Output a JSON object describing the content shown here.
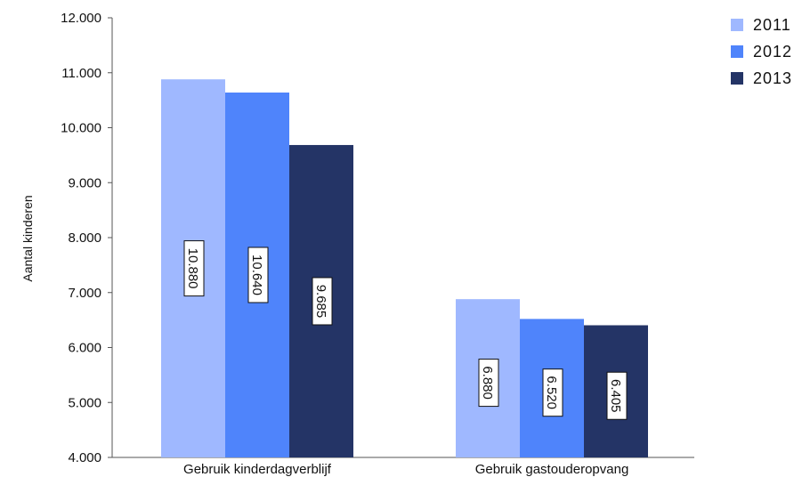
{
  "chart_data": {
    "type": "bar",
    "categories": [
      "Gebruik kinderdagverblijf",
      "Gebruik gastouderopvang"
    ],
    "series": [
      {
        "name": "2011",
        "color": "#9fb8ff",
        "values": [
          10880,
          6880
        ],
        "labels": [
          "10.880",
          "6.880"
        ]
      },
      {
        "name": "2012",
        "color": "#4f84fb",
        "values": [
          10640,
          6520
        ],
        "labels": [
          "10.640",
          "6.520"
        ]
      },
      {
        "name": "2013",
        "color": "#243466",
        "values": [
          9685,
          6405
        ],
        "labels": [
          "9.685",
          "6.405"
        ]
      }
    ],
    "ylabel": "Aantal kinderen",
    "ylim": [
      4000,
      12000
    ],
    "yticks": [
      4000,
      5000,
      6000,
      7000,
      8000,
      9000,
      10000,
      11000,
      12000
    ],
    "ytick_labels": [
      "4.000",
      "5.000",
      "6.000",
      "7.000",
      "8.000",
      "9.000",
      "10.000",
      "11.000",
      "12.000"
    ],
    "grid": false,
    "legend": "top-right"
  }
}
